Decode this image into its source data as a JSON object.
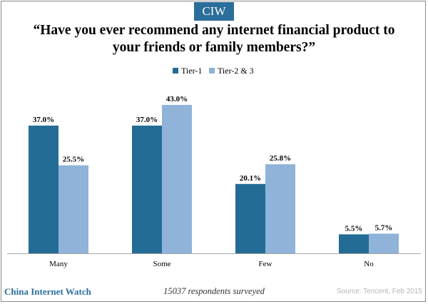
{
  "brand": {
    "badge_text": "CIW",
    "badge_color": "#2a6e9b",
    "footer_name": "China Internet Watch"
  },
  "footer": {
    "note": "15037 respondents surveyed",
    "source": "Source: Tencent, Feb 2015"
  },
  "chart_data": {
    "type": "bar",
    "title": "“Have you ever recommend any internet financial product to your friends or family members?”",
    "xlabel": "",
    "ylabel": "",
    "categories": [
      "Many",
      "Some",
      "Few",
      "No"
    ],
    "series": [
      {
        "name": "Tier-1",
        "color": "#236c95",
        "values": [
          37.0,
          37.0,
          20.1,
          5.5
        ],
        "labels": [
          "37.0%",
          "37.0%",
          "20.1%",
          "5.5%"
        ]
      },
      {
        "name": "Tier-2 & 3",
        "color": "#8fb3d9",
        "values": [
          25.5,
          43.0,
          25.8,
          5.7
        ],
        "labels": [
          "25.5%",
          "43.0%",
          "25.8%",
          "5.7%"
        ]
      }
    ],
    "ylim": [
      0,
      43
    ],
    "grid": false,
    "legend": "top-center",
    "data_labels": true
  }
}
